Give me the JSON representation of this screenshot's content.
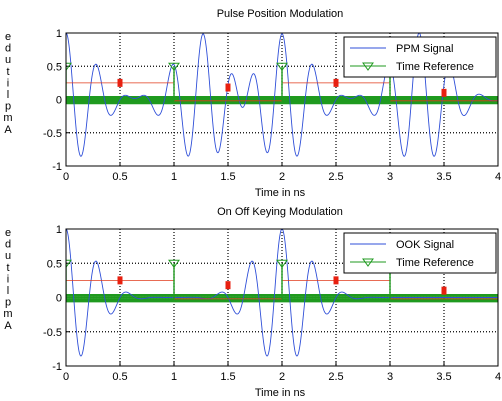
{
  "chart_data": [
    {
      "type": "line",
      "title": "Pulse Position Modulation",
      "xlabel": "Time in ns",
      "ylabel": "Amplitude",
      "xlim": [
        0,
        4
      ],
      "ylim": [
        -1,
        1
      ],
      "xticks": [
        "0",
        "0.5",
        "1",
        "1.5",
        "2",
        "2.5",
        "3",
        "3.5",
        "4"
      ],
      "yticks": [
        "-1",
        "-0.5",
        "0",
        "0.5",
        "1"
      ],
      "grid": true,
      "legend_position": "top-right",
      "series": [
        {
          "name": "PPM Signal",
          "color": "#2f4fd8",
          "pulse_centers": [
            0.0,
            1.27,
            2.0,
            3.27
          ],
          "frequency_per_ns": 3.5,
          "decay": 8
        },
        {
          "name": "Time Reference",
          "color": "#1f9a1f",
          "markers": [
            [
              0,
              0.5
            ],
            [
              1,
              0.5
            ],
            [
              2,
              0.5
            ],
            [
              3,
              0.5
            ]
          ]
        }
      ],
      "annotations": {
        "red_segments": [
          [
            [
              0,
              0.25
            ],
            [
              1,
              0.25
            ]
          ],
          [
            [
              1,
              -0.02
            ],
            [
              2,
              -0.02
            ]
          ],
          [
            [
              2,
              0.25
            ],
            [
              3,
              0.25
            ]
          ],
          [
            [
              3,
              -0.02
            ],
            [
              4,
              -0.02
            ]
          ]
        ],
        "red_markers": [
          [
            0.5,
            0.25
          ],
          [
            1.5,
            0.18
          ],
          [
            2.5,
            0.25
          ],
          [
            3.5,
            0.1
          ]
        ]
      }
    },
    {
      "type": "line",
      "title": "On Off Keying Modulation",
      "xlabel": "Time in ns",
      "ylabel": "Amplitude",
      "xlim": [
        0,
        4
      ],
      "ylim": [
        -1,
        1
      ],
      "xticks": [
        "0",
        "0.5",
        "1",
        "1.5",
        "2",
        "2.5",
        "3",
        "3.5",
        "4"
      ],
      "yticks": [
        "-1",
        "-0.5",
        "0",
        "0.5",
        "1"
      ],
      "grid": true,
      "legend_position": "top-right",
      "series": [
        {
          "name": "OOK Signal",
          "color": "#2f4fd8",
          "pulse_centers": [
            0.0,
            2.0
          ],
          "frequency_per_ns": 3.5,
          "decay": 8
        },
        {
          "name": "Time Reference",
          "color": "#1f9a1f",
          "markers": [
            [
              0,
              0.5
            ],
            [
              1,
              0.5
            ],
            [
              2,
              0.5
            ],
            [
              3,
              0.5
            ]
          ]
        }
      ],
      "annotations": {
        "red_segments": [
          [
            [
              0,
              0.25
            ],
            [
              1,
              0.25
            ]
          ],
          [
            [
              1,
              -0.02
            ],
            [
              2,
              -0.02
            ]
          ],
          [
            [
              2,
              0.25
            ],
            [
              3,
              0.25
            ]
          ],
          [
            [
              3,
              -0.02
            ],
            [
              4,
              -0.02
            ]
          ]
        ],
        "red_markers": [
          [
            0.5,
            0.25
          ],
          [
            1.5,
            0.18
          ],
          [
            2.5,
            0.25
          ],
          [
            3.5,
            0.1
          ]
        ]
      }
    }
  ]
}
